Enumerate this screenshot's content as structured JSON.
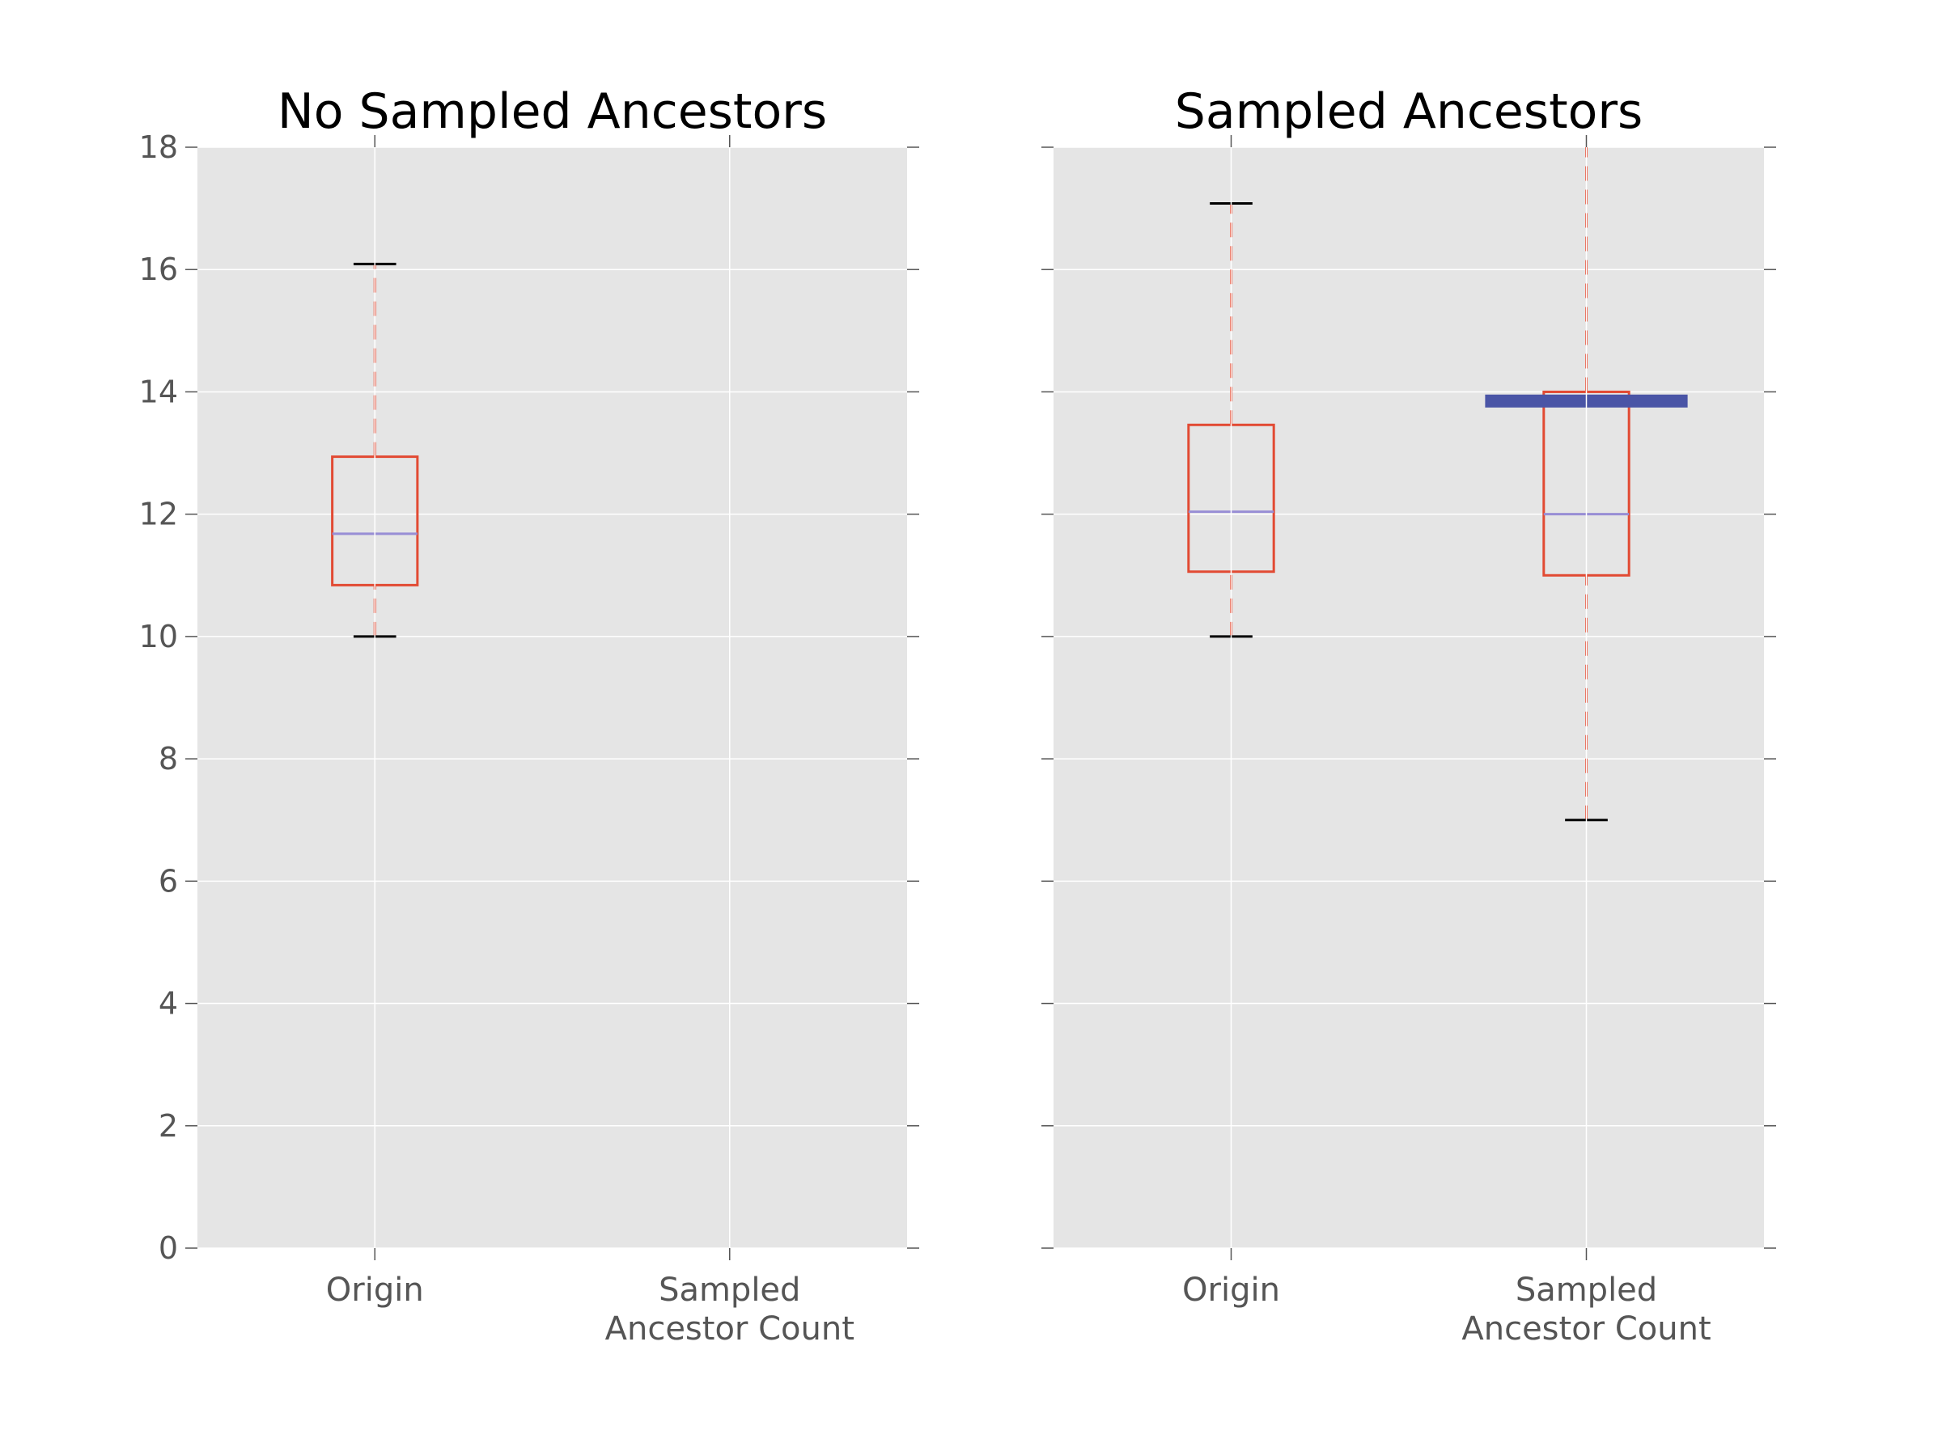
{
  "chart_data": [
    {
      "type": "box",
      "title": "No Sampled Ancestors",
      "categories": [
        "Origin",
        "Sampled\nAncestor Count"
      ],
      "boxes": [
        {
          "whislo": 10,
          "q1": 10.84,
          "med": 11.68,
          "q3": 12.94,
          "whishi": 16.09
        },
        null
      ],
      "box_color": "#e24a33",
      "median_color": "#988ed5",
      "cap_color": "#000000",
      "ylim": [
        0,
        18
      ],
      "yticks": [
        0,
        2,
        4,
        6,
        8,
        10,
        12,
        14,
        16,
        18
      ],
      "grid": true,
      "ytick_labels": true
    },
    {
      "type": "box",
      "title": "Sampled Ancestors",
      "categories": [
        "Origin",
        "Sampled\nAncestor Count"
      ],
      "boxes": [
        {
          "whislo": 10,
          "q1": 11.06,
          "med": 12.04,
          "q3": 13.46,
          "whishi": 17.08
        },
        {
          "whislo": 7,
          "q1": 11,
          "med": 12,
          "q3": 14,
          "whishi": 18.5
        }
      ],
      "highlight": {
        "category": 1,
        "value": 13.85,
        "color": "#4a55a6"
      },
      "box_color": "#e24a33",
      "median_color": "#988ed5",
      "cap_color": "#000000",
      "ylim": [
        0,
        18
      ],
      "yticks": [
        0,
        2,
        4,
        6,
        8,
        10,
        12,
        14,
        16,
        18
      ],
      "grid": true,
      "ytick_labels": false
    }
  ]
}
